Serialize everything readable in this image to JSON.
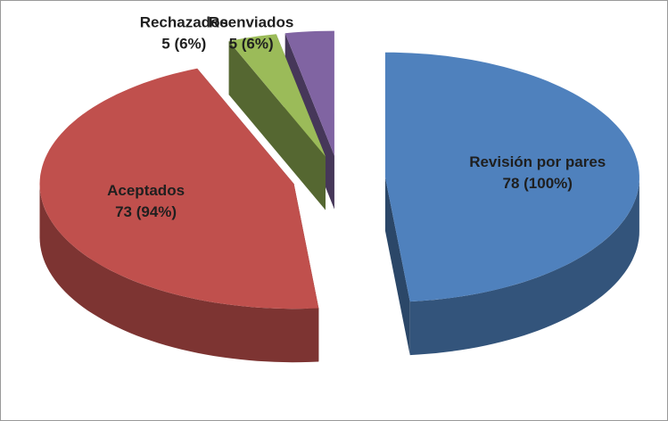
{
  "chart_data": {
    "type": "pie3d",
    "categories": [
      "Revisión por pares",
      "Aceptados",
      "Rechazados",
      "Reenviados"
    ],
    "values": [
      78,
      73,
      5,
      5
    ],
    "value_labels": [
      "78 (100%)",
      "73 (94%)",
      "5 (6%)",
      "5 (6%)"
    ],
    "colors": [
      "#4f81bd",
      "#c0504d",
      "#9bbb59",
      "#8064a2"
    ]
  }
}
